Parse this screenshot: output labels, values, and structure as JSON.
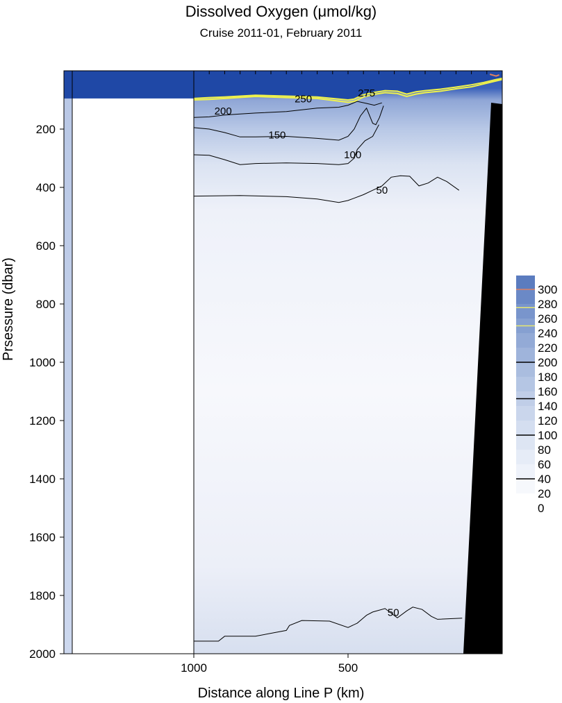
{
  "chart_data": {
    "type": "heatmap",
    "title": "Dissolved Oxygen  (μmol/kg)",
    "subtitle": "Cruise 2011-01,  February 2011",
    "xlabel": "Distance along Line P  (km)",
    "ylabel": "Prsessure  (dbar)",
    "x_axis": {
      "reversed": true,
      "ticks": [
        1000,
        500
      ],
      "range_km": [
        1420,
        0
      ]
    },
    "y_axis": {
      "reversed": true,
      "ticks": [
        200,
        400,
        600,
        800,
        1000,
        1200,
        1400,
        1600,
        1800,
        2000
      ],
      "range_dbar": [
        0,
        2000
      ]
    },
    "colorbar": {
      "ticks": [
        0,
        20,
        40,
        60,
        80,
        100,
        120,
        140,
        160,
        180,
        200,
        220,
        240,
        260,
        280,
        300
      ],
      "colors": [
        "#ffffff",
        "#f6f8fc",
        "#eef2fa",
        "#e6ecf7",
        "#dde5f3",
        "#d4def0",
        "#cad6ec",
        "#c0cee8",
        "#b5c6e4",
        "#aabddf",
        "#9fb4db",
        "#93aad6",
        "#86a0d1",
        "#7995cc",
        "#6b89c6",
        "#5b7cbf"
      ],
      "line_markers": [
        {
          "value": 40,
          "color": "#000000"
        },
        {
          "value": 100,
          "color": "#000000"
        },
        {
          "value": 150,
          "color": "#000000"
        },
        {
          "value": 200,
          "color": "#000000"
        },
        {
          "value": 250,
          "color": "#e8e870"
        },
        {
          "value": 275,
          "color": "#e8e870"
        },
        {
          "value": 300,
          "color": "#e08060"
        }
      ]
    },
    "contour_labels": [
      {
        "value": "275",
        "km": 440,
        "dbar": 88
      },
      {
        "value": "250",
        "km": 645,
        "dbar": 108
      },
      {
        "value": "200",
        "km": 905,
        "dbar": 150
      },
      {
        "value": "150",
        "km": 730,
        "dbar": 232
      },
      {
        "value": "100",
        "km": 485,
        "dbar": 300
      },
      {
        "value": "50",
        "km": 390,
        "dbar": 422
      },
      {
        "value": "50",
        "km": 353,
        "dbar": 1870
      }
    ],
    "contours": [
      {
        "level": 50,
        "points": [
          [
            1000,
            430
          ],
          [
            850,
            428
          ],
          [
            700,
            432
          ],
          [
            600,
            440
          ],
          [
            530,
            452
          ],
          [
            500,
            445
          ],
          [
            450,
            425
          ],
          [
            420,
            410
          ],
          [
            390,
            395
          ],
          [
            360,
            365
          ],
          [
            330,
            360
          ],
          [
            300,
            362
          ],
          [
            270,
            395
          ],
          [
            240,
            385
          ],
          [
            210,
            365
          ],
          [
            180,
            380
          ],
          [
            140,
            410
          ]
        ]
      },
      {
        "level": 100,
        "points": [
          [
            1000,
            288
          ],
          [
            950,
            290
          ],
          [
            900,
            305
          ],
          [
            850,
            322
          ],
          [
            800,
            318
          ],
          [
            700,
            316
          ],
          [
            600,
            318
          ],
          [
            530,
            322
          ],
          [
            500,
            318
          ],
          [
            480,
            300
          ],
          [
            470,
            270
          ],
          [
            445,
            240
          ],
          [
            420,
            225
          ],
          [
            400,
            185
          ]
        ]
      },
      {
        "level": 150,
        "points": [
          [
            1000,
            195
          ],
          [
            950,
            200
          ],
          [
            900,
            212
          ],
          [
            850,
            227
          ],
          [
            800,
            227
          ],
          [
            700,
            225
          ],
          [
            600,
            232
          ],
          [
            530,
            238
          ],
          [
            500,
            225
          ],
          [
            480,
            200
          ],
          [
            460,
            155
          ],
          [
            440,
            128
          ],
          [
            420,
            180
          ],
          [
            410,
            185
          ],
          [
            398,
            160
          ],
          [
            385,
            120
          ]
        ]
      },
      {
        "level": 200,
        "points": [
          [
            1000,
            160
          ],
          [
            950,
            158
          ],
          [
            900,
            152
          ],
          [
            850,
            148
          ],
          [
            800,
            145
          ],
          [
            700,
            140
          ],
          [
            600,
            128
          ],
          [
            530,
            125
          ],
          [
            500,
            118
          ],
          [
            470,
            105
          ],
          [
            440,
            112
          ],
          [
            415,
            118
          ],
          [
            390,
            110
          ]
        ]
      },
      {
        "level": 50,
        "points": [
          [
            1000,
            1957
          ],
          [
            920,
            1957
          ],
          [
            900,
            1940
          ],
          [
            800,
            1940
          ],
          [
            700,
            1920
          ],
          [
            690,
            1903
          ],
          [
            650,
            1886
          ],
          [
            560,
            1888
          ],
          [
            500,
            1910
          ],
          [
            470,
            1895
          ],
          [
            440,
            1868
          ],
          [
            420,
            1857
          ],
          [
            380,
            1845
          ],
          [
            340,
            1877
          ],
          [
            310,
            1853
          ],
          [
            290,
            1840
          ],
          [
            260,
            1848
          ],
          [
            230,
            1872
          ],
          [
            210,
            1882
          ],
          [
            130,
            1878
          ]
        ]
      }
    ],
    "oxygen_lines": [
      {
        "level": 250,
        "points": [
          [
            1000,
            100
          ],
          [
            950,
            98
          ],
          [
            900,
            95
          ],
          [
            800,
            88
          ],
          [
            700,
            92
          ],
          [
            600,
            95
          ],
          [
            500,
            108
          ],
          [
            480,
            105
          ],
          [
            450,
            90
          ],
          [
            420,
            82
          ],
          [
            380,
            75
          ],
          [
            340,
            78
          ],
          [
            310,
            88
          ],
          [
            280,
            80
          ],
          [
            250,
            75
          ],
          [
            200,
            70
          ],
          [
            150,
            62
          ],
          [
            100,
            55
          ],
          [
            60,
            45
          ],
          [
            20,
            35
          ],
          [
            0,
            30
          ]
        ]
      },
      {
        "level": 275,
        "points": [
          [
            1000,
            95
          ],
          [
            950,
            92
          ],
          [
            900,
            90
          ],
          [
            800,
            84
          ],
          [
            700,
            87
          ],
          [
            600,
            90
          ],
          [
            500,
            100
          ],
          [
            480,
            97
          ],
          [
            450,
            82
          ],
          [
            420,
            75
          ],
          [
            380,
            68
          ],
          [
            340,
            70
          ],
          [
            310,
            80
          ],
          [
            280,
            72
          ],
          [
            250,
            68
          ],
          [
            200,
            63
          ],
          [
            150,
            56
          ],
          [
            100,
            48
          ],
          [
            60,
            40
          ],
          [
            20,
            30
          ],
          [
            0,
            26
          ]
        ]
      },
      {
        "level": 300,
        "points": [
          [
            40,
            12
          ],
          [
            20,
            18
          ],
          [
            10,
            14
          ]
        ]
      }
    ]
  }
}
